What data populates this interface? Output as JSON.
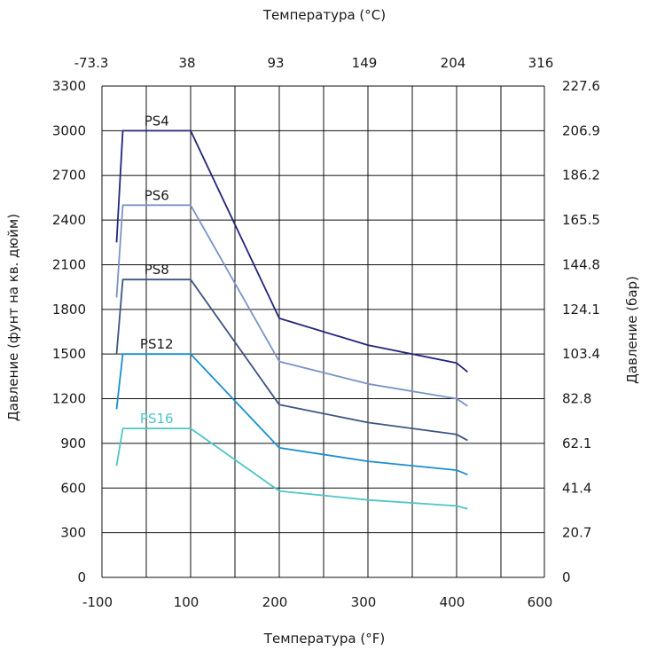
{
  "chart_data": {
    "type": "line",
    "title": "",
    "xlabel_bottom": "Температура (°F)",
    "xlabel_top": "Температура (°C)",
    "ylabel_left": "Давление (фунт на кв. дюйм)",
    "ylabel_right": "Давление (бар)",
    "xlim": [
      -100,
      600
    ],
    "ylim": [
      0,
      3300
    ],
    "grid": true,
    "x_ticks_bottom": [
      "-100",
      "100",
      "200",
      "300",
      "400",
      "600"
    ],
    "x_tick_values_bottom": [
      -100,
      100,
      200,
      300,
      400,
      600
    ],
    "x_ticks_top": [
      "-73.3",
      "38",
      "93",
      "149",
      "204",
      "316"
    ],
    "x_tick_values_top": [
      -100,
      100,
      200,
      300,
      400,
      600
    ],
    "y_ticks_left": [
      "0",
      "300",
      "600",
      "900",
      "1200",
      "1500",
      "1800",
      "2100",
      "2400",
      "2700",
      "3000",
      "3300"
    ],
    "y_tick_values": [
      0,
      300,
      600,
      900,
      1200,
      1500,
      1800,
      2100,
      2400,
      2700,
      3000,
      3300
    ],
    "y_ticks_right": [
      "0",
      "20.7",
      "41.4",
      "62.1",
      "82.8",
      "103.4",
      "124.1",
      "144.8",
      "165.5",
      "186.2",
      "206.9",
      "227.6"
    ],
    "series": [
      {
        "name": "PS4",
        "color": "#23257a",
        "x": [
          -67,
          -53,
          100,
          200,
          300,
          400,
          425
        ],
        "y": [
          2250,
          3000,
          3000,
          1740,
          1560,
          1440,
          1380
        ]
      },
      {
        "name": "PS6",
        "color": "#7a93c6",
        "x": [
          -67,
          -53,
          100,
          200,
          300,
          400,
          425
        ],
        "y": [
          1880,
          2500,
          2500,
          1450,
          1300,
          1200,
          1150
        ]
      },
      {
        "name": "PS8",
        "color": "#3d5580",
        "x": [
          -67,
          -53,
          100,
          200,
          300,
          400,
          425
        ],
        "y": [
          1500,
          2000,
          2000,
          1160,
          1040,
          960,
          920
        ]
      },
      {
        "name": "PS12",
        "color": "#1a8fcf",
        "x": [
          -67,
          -53,
          100,
          200,
          300,
          400,
          425
        ],
        "y": [
          1130,
          1500,
          1500,
          870,
          780,
          720,
          690
        ]
      },
      {
        "name": "PS16",
        "color": "#4dc6c9",
        "x": [
          -67,
          -53,
          100,
          200,
          300,
          400,
          425
        ],
        "y": [
          750,
          1000,
          1000,
          580,
          520,
          480,
          460
        ]
      }
    ]
  }
}
